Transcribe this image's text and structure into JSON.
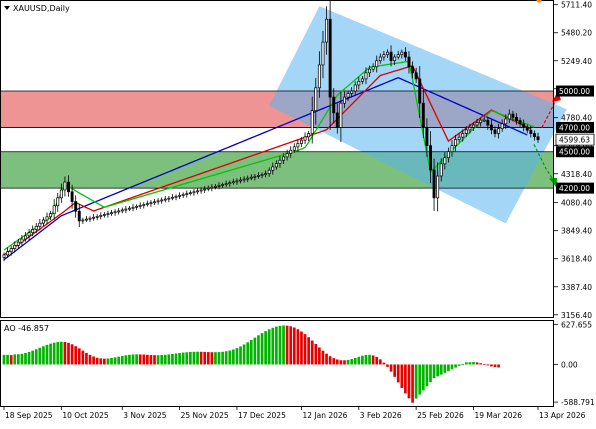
{
  "header": {
    "symbol_label": "XAUUSD,Daily",
    "menu_icon": "triangle-down-icon"
  },
  "price_axis": {
    "ticks": [
      "5711.40",
      "5480.20",
      "5249.40",
      "5018.60",
      "4780.40",
      "4549.60",
      "4318.40",
      "4080.40",
      "3849.40",
      "3618.40",
      "3387.40",
      "3156.40"
    ],
    "tick_values": [
      5711.4,
      5480.2,
      5249.4,
      5018.6,
      4780.4,
      4549.6,
      4318.4,
      4080.4,
      3849.4,
      3618.4,
      3387.4,
      3156.4
    ]
  },
  "levels": [
    {
      "label": "5000.00",
      "value": 5000
    },
    {
      "label": "4700.00",
      "value": 4700
    },
    {
      "label": "4500.00",
      "value": 4500
    },
    {
      "label": "4200.00",
      "value": 4200
    }
  ],
  "current_price": {
    "label": "4599.63",
    "value": 4599.63
  },
  "ao_panel": {
    "title": "AO -46.857",
    "ticks": [
      "627.655",
      "0.00",
      "-588.791"
    ],
    "tick_values": [
      627.655,
      0,
      -588.791
    ]
  },
  "time_axis": {
    "labels": [
      "18 Sep 2025",
      "10 Oct 2025",
      "3 Nov 2025",
      "25 Nov 2025",
      "17 Dec 2025",
      "12 Jan 2026",
      "3 Feb 2026",
      "25 Feb 2026",
      "19 Mar 2026",
      "13 Apr 2026"
    ],
    "label_bars": [
      0,
      16,
      33,
      49,
      65,
      83,
      99,
      115,
      131,
      149
    ]
  },
  "colors": {
    "bull": "#ffffff",
    "bear": "#000000",
    "ma_fast": "#00c800",
    "ma_mid": "#dc0000",
    "ma_slow": "#0000c8",
    "ao_up": "#00b400",
    "ao_down": "#e60000",
    "resistance_zone": "#e86b6b",
    "support_zone": "#3fa03f",
    "channel": "#5ab4f0"
  },
  "chart_data": [
    {
      "type": "candlestick",
      "title": "XAUUSD,Daily",
      "ylim": [
        3130,
        5750
      ],
      "series": [
        {
          "name": "XAUUSD",
          "close": [
            3650,
            3676.2,
            3702.3,
            3728.5,
            3754.6,
            3780.8,
            3806.9,
            3833.1,
            3859.2,
            3885.4,
            3911.5,
            3937.7,
            3963.8,
            3990,
            4055,
            4120,
            4185,
            4250,
            4170,
            4090,
            4010,
            3930,
            3937.5,
            3945,
            3952.5,
            3960,
            3967.5,
            3975,
            3982.5,
            3990,
            3997.5,
            4005,
            4012.5,
            4020,
            4027.5,
            4035,
            4042.5,
            4050,
            4057.5,
            4065,
            4072.5,
            4080,
            4087.5,
            4095,
            4102.5,
            4110,
            4117.5,
            4125,
            4132.5,
            4140,
            4147.5,
            4155,
            4162.5,
            4170,
            4177.5,
            4185,
            4192.5,
            4200,
            4207.5,
            4215,
            4222.5,
            4230,
            4237.5,
            4245,
            4252.5,
            4260,
            4267.5,
            4275,
            4282.5,
            4290,
            4297.5,
            4305,
            4312.5,
            4320,
            4347.5,
            4375,
            4402.5,
            4430,
            4457.5,
            4485,
            4512.5,
            4540,
            4567.5,
            4595,
            4622.5,
            4650,
            4838.3,
            5026.7,
            5215,
            5403.3,
            5591.7,
            4950,
            4820,
            4700,
            4900,
            4950,
            4980,
            5000,
            5050,
            5080,
            5100,
            5150,
            5180,
            5200,
            5250,
            5280,
            5300,
            5320,
            5250,
            5280,
            5300,
            5320,
            5280,
            5200,
            5150,
            5100,
            4900,
            4700,
            4550,
            4350,
            4120,
            4300,
            4400,
            4450,
            4500,
            4550,
            4600,
            4620,
            4650,
            4680,
            4700,
            4720,
            4740,
            4760,
            4760,
            4720,
            4680,
            4650,
            4690,
            4730,
            4770,
            4810,
            4783.3,
            4756.7,
            4730,
            4703.3,
            4676.7,
            4650,
            4623.3,
            4599.6
          ]
        },
        {
          "name": "MA fast",
          "values": [
            3690,
            3710.8,
            3731.7,
            3752.5,
            3773.3,
            3794.2,
            3815,
            3835.8,
            3856.7,
            3877.5,
            3898.3,
            3919.2,
            3940,
            3958,
            4026,
            4093.6,
            4160.3,
            4228,
            4211.1,
            4194.2,
            4177.3,
            4160.4,
            4143.5,
            4126.5,
            4109.6,
            4092.7,
            4075.8,
            4058.9,
            4042,
            4050.7,
            4059.3,
            4068,
            4076.7,
            4085.3,
            4094,
            4102.7,
            4111.3,
            4120,
            4128.7,
            4137.3,
            4146,
            4154.7,
            4163.3,
            4172,
            4180.7,
            4189.3,
            4198,
            4206.7,
            4215.3,
            4224,
            4232.7,
            4241.3,
            4250,
            4258.7,
            4267.3,
            4276,
            4284.7,
            4293.3,
            4302,
            4310.7,
            4319.3,
            4328,
            4336.7,
            4345.3,
            4354,
            4362.7,
            4371.3,
            4380,
            4388.7,
            4397.3,
            4406,
            4414.7,
            4423.3,
            4432,
            4440.7,
            4449.3,
            4458,
            4466.7,
            4475.3,
            4484,
            4492.7,
            4501.3,
            4510,
            4522.5,
            4535,
            4578.3,
            4626.7,
            4675,
            4723.3,
            4771.7,
            4820,
            4868.3,
            4916.7,
            4965,
            4990.7,
            5016.3,
            5042,
            5067.7,
            5093.3,
            5119,
            5144.7,
            5170.3,
            5196,
            5200.4,
            5204.8,
            5209.2,
            5213.6,
            5218,
            5222.4,
            5226.9,
            5231.3,
            5235.7,
            5240.1,
            5244.5,
            5092.7,
            4940.8,
            4789,
            4637.2,
            4485.3,
            4333.5,
            4363.2,
            4392.8,
            4422.5,
            4452.2,
            4481.8,
            4511.5,
            4541.2,
            4570.8,
            4600.5,
            4630.2,
            4659.8,
            4689.5,
            4719.2,
            4748.8,
            4778.5,
            4808.2,
            4837.8,
            4826.7,
            4815.6,
            4804.4,
            4793.3,
            4782.2,
            4771.1,
            4760,
            4748.9,
            4737.8,
            4726.7,
            4715.6,
            4704.4
          ]
        },
        {
          "name": "MA mid",
          "values": [
            3650,
            3671.3,
            3692.5,
            3713.8,
            3735,
            3756.3,
            3777.5,
            3798.8,
            3820,
            3841.3,
            3862.5,
            3883.8,
            3905,
            3926.3,
            3947.5,
            3968.8,
            3990,
            4012.9,
            4035.8,
            4058.6,
            4081.5,
            4067.5,
            4053.5,
            4039.5,
            4025.5,
            4011.5,
            4021.8,
            4032.1,
            4042.4,
            4052.7,
            4063,
            4073.3,
            4083.6,
            4093.9,
            4104.2,
            4114.5,
            4124.8,
            4135.1,
            4145.4,
            4155.7,
            4166,
            4176.3,
            4186.6,
            4196.9,
            4207.2,
            4217.5,
            4227.8,
            4238.1,
            4248.4,
            4258.7,
            4269,
            4279.3,
            4289.6,
            4299.9,
            4310.2,
            4320.5,
            4330.8,
            4341.1,
            4351.4,
            4361.7,
            4372,
            4382.3,
            4392.6,
            4402.9,
            4413.2,
            4423.5,
            4433.8,
            4444.1,
            4454.4,
            4464.7,
            4475,
            4485.3,
            4495.6,
            4505.9,
            4516.2,
            4526.5,
            4536.8,
            4547.1,
            4557.4,
            4567.7,
            4578,
            4588.3,
            4598.6,
            4608.9,
            4619.2,
            4629.5,
            4639.8,
            4650.1,
            4660.4,
            4670.7,
            4681,
            4710.8,
            4740.6,
            4770.4,
            4800.2,
            4830,
            4859.8,
            4889.6,
            4919.4,
            4949.2,
            4979,
            5008.8,
            5038.6,
            5068.4,
            5098.2,
            5128,
            5136.9,
            5145.8,
            5154.7,
            5163.6,
            5172.5,
            5181.4,
            5190.3,
            5199.1,
            5208,
            5146,
            5083.9,
            5021.9,
            4959.8,
            4897.8,
            4835.8,
            4773.7,
            4711.7,
            4649.6,
            4587.6,
            4608.9,
            4630.2,
            4651.6,
            4672.9,
            4694.2,
            4715.5,
            4736.8,
            4758.1,
            4779.5,
            4800.8,
            4822.1,
            4843.4,
            4829.2,
            4815,
            4800.9,
            4786.7,
            4772.5,
            4758.4,
            4744.2,
            4730,
            4715.9,
            4701.7,
            4687.5
          ]
        },
        {
          "name": "MA slow",
          "values": [
            3610,
            3632.6,
            3655.3,
            3677.9,
            3700.6,
            3723.2,
            3745.9,
            3768.5,
            3791.1,
            3813.8,
            3836.4,
            3859.1,
            3881.7,
            3904.4,
            3927,
            3949.6,
            3972.3,
            3984.4,
            3996.5,
            4008.6,
            4020.7,
            4032.8,
            4044.9,
            4057,
            4069.1,
            4081.3,
            4093.4,
            4105.5,
            4117.6,
            4129.7,
            4141.8,
            4153.9,
            4166,
            4178.1,
            4190.2,
            4202.3,
            4214.4,
            4226.5,
            4238.6,
            4250.7,
            4262.8,
            4274.9,
            4287,
            4299.1,
            4311.2,
            4323.3,
            4335.4,
            4347.5,
            4359.6,
            4371.8,
            4383.9,
            4396,
            4408.1,
            4420.2,
            4432.3,
            4444.4,
            4456.5,
            4468.6,
            4480.7,
            4492.8,
            4504.9,
            4517,
            4529.1,
            4541.2,
            4553.3,
            4565.4,
            4577.5,
            4589.6,
            4601.7,
            4613.8,
            4625.9,
            4638,
            4650.1,
            4662.2,
            4674.4,
            4686.5,
            4698.6,
            4710.7,
            4722.8,
            4734.9,
            4747,
            4759.1,
            4771.2,
            4783.3,
            4795.4,
            4807.5,
            4819.6,
            4831.7,
            4843.8,
            4855.9,
            4868,
            4880.1,
            4892.2,
            4904.3,
            4916.4,
            4928.5,
            4940.6,
            4952.7,
            4964.8,
            4976.9,
            4989,
            5001.1,
            5013.2,
            5025.3,
            5037.4,
            5049.5,
            5061.6,
            5073.7,
            5085.8,
            5097.9,
            5110,
            5096.9,
            5083.8,
            5070.7,
            5057.6,
            5044.5,
            5031.4,
            5018.3,
            5005.1,
            4992,
            4978.9,
            4965.8,
            4952.7,
            4939.6,
            4926.5,
            4913.4,
            4900.3,
            4887.2,
            4874.1,
            4861,
            4847.9,
            4834.8,
            4821.7,
            4808.6,
            4795.5,
            4782.4,
            4769.3,
            4756.2,
            4743.1,
            4730,
            4716.9,
            4703.8,
            4690.7,
            4677.6,
            4664.5,
            4651.4,
            4638.3
          ]
        }
      ]
    },
    {
      "type": "bar",
      "title": "AO -46.857",
      "ylim": [
        -650,
        680
      ],
      "series": [
        {
          "name": "AO",
          "values": [
            150,
            150,
            146,
            157,
            160,
            166,
            180,
            196,
            216,
            238,
            262,
            285,
            307,
            326,
            341,
            351,
            355,
            352,
            338,
            316,
            286,
            252,
            216,
            181,
            150,
            124,
            105,
            95,
            91,
            94,
            101,
            111,
            122,
            133,
            143,
            151,
            156,
            158,
            157,
            155,
            151,
            147,
            145,
            145,
            147,
            151,
            157,
            164,
            171,
            179,
            186,
            191,
            196,
            198,
            199,
            198,
            196,
            194,
            192,
            192,
            194,
            198,
            206,
            218,
            234,
            256,
            282,
            313,
            347,
            383,
            420,
            456,
            490,
            522,
            550,
            574,
            592,
            604,
            609,
            607,
            597,
            578,
            551,
            516,
            474,
            426,
            374,
            320,
            266,
            215,
            169,
            130,
            99,
            78,
            66,
            65,
            71,
            84,
            101,
            120,
            137,
            149,
            151,
            141,
            118,
            80,
            28,
            -37,
            -112,
            -194,
            -281,
            -368,
            -452,
            -530,
            -598,
            -534,
            -470,
            -406,
            -342,
            -278,
            -214,
            -186,
            -159,
            -131,
            -104,
            -76,
            -49,
            -21,
            6,
            34,
            36,
            38,
            32,
            20,
            3,
            -15,
            -30,
            -41,
            -47
          ]
        }
      ]
    }
  ]
}
